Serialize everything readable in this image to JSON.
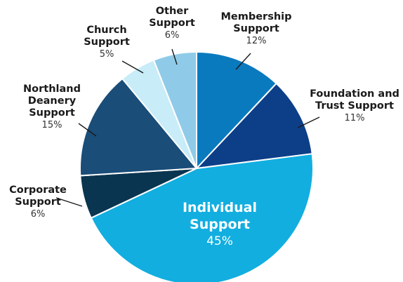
{
  "chart_data": {
    "type": "pie",
    "title": "",
    "start_angle_deg": -90,
    "direction": "clockwise",
    "slices": [
      {
        "name": "Membership Support",
        "name_lines": [
          "Membership",
          "Support"
        ],
        "value": 12,
        "label": "12%",
        "color": "#0a7abf"
      },
      {
        "name": "Foundation and Trust Support",
        "name_lines": [
          "Foundation and",
          "Trust Support"
        ],
        "value": 11,
        "label": "11%",
        "color": "#0d3f88"
      },
      {
        "name": "Individual Support",
        "name_lines": [
          "Individual",
          "Support"
        ],
        "value": 45,
        "label": "45%",
        "color": "#12aee0"
      },
      {
        "name": "Corporate Support",
        "name_lines": [
          "Corporate",
          "Support"
        ],
        "value": 6,
        "label": "6%",
        "color": "#0a3550"
      },
      {
        "name": "Northland Deanery Support",
        "name_lines": [
          "Northland",
          "Deanery",
          "Support"
        ],
        "value": 15,
        "label": "15%",
        "color": "#1a4d78"
      },
      {
        "name": "Church Support",
        "name_lines": [
          "Church",
          "Support"
        ],
        "value": 5,
        "label": "5%",
        "color": "#c8ecf8"
      },
      {
        "name": "Other Support",
        "name_lines": [
          "Other",
          "Support"
        ],
        "value": 6,
        "label": "6%",
        "color": "#8fcbe8"
      }
    ]
  }
}
